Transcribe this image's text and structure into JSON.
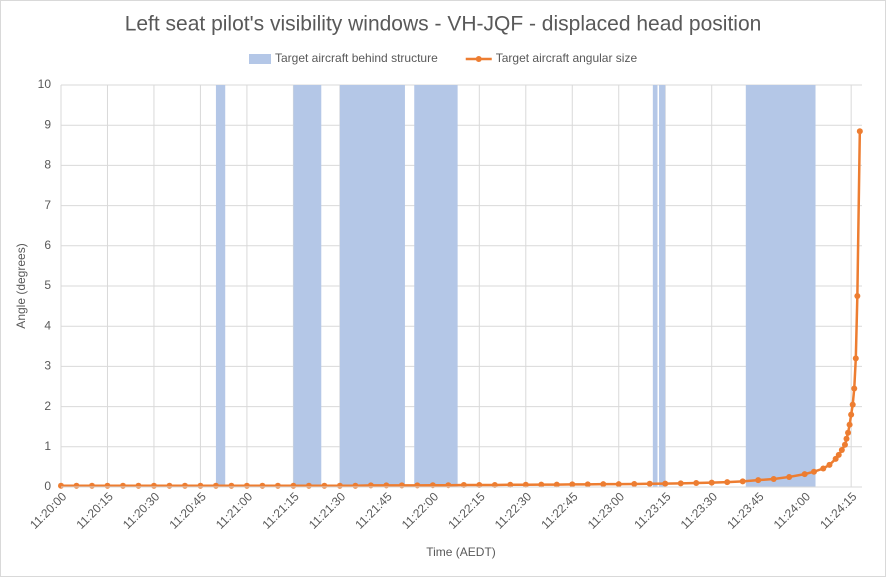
{
  "chart_data": {
    "type": "combo",
    "title": "Left seat pilot's visibility windows - VH-JQF - displaced head position",
    "x_label": "Time (AEDT)",
    "y_label": "Angle (degrees)",
    "xlim": [
      0,
      258.5
    ],
    "ylim": [
      0,
      10
    ],
    "xticks": [
      {
        "value": 0,
        "label": "11:20:00"
      },
      {
        "value": 15,
        "label": "11:20:15"
      },
      {
        "value": 30,
        "label": "11:20:30"
      },
      {
        "value": 45,
        "label": "11:20:45"
      },
      {
        "value": 60,
        "label": "11:21:00"
      },
      {
        "value": 75,
        "label": "11:21:15"
      },
      {
        "value": 90,
        "label": "11:21:30"
      },
      {
        "value": 105,
        "label": "11:21:45"
      },
      {
        "value": 120,
        "label": "11:22:00"
      },
      {
        "value": 135,
        "label": "11:22:15"
      },
      {
        "value": 150,
        "label": "11:22:30"
      },
      {
        "value": 165,
        "label": "11:22:45"
      },
      {
        "value": 180,
        "label": "11:23:00"
      },
      {
        "value": 195,
        "label": "11:23:15"
      },
      {
        "value": 210,
        "label": "11:23:30"
      },
      {
        "value": 225,
        "label": "11:23:45"
      },
      {
        "value": 240,
        "label": "11:24:00"
      },
      {
        "value": 255,
        "label": "11:24:15"
      }
    ],
    "yticks": [
      0,
      1,
      2,
      3,
      4,
      5,
      6,
      7,
      8,
      9,
      10
    ],
    "grid": true,
    "legend": "top",
    "series": [
      {
        "name": "Target aircraft behind structure",
        "type": "band",
        "color": "#b4c7e7",
        "x_start": [
          50,
          75,
          90,
          114,
          191,
          193,
          221
        ],
        "x_end": [
          53,
          84,
          111,
          128,
          192.5,
          195,
          243.5
        ],
        "values": [
          10,
          10,
          10,
          10,
          10,
          10,
          10
        ]
      },
      {
        "name": "Target aircraft angular size",
        "type": "line",
        "color": "#ed7d31",
        "x": [
          0,
          5,
          10,
          15,
          20,
          25,
          30,
          35,
          40,
          45,
          50,
          55,
          60,
          65,
          70,
          75,
          80,
          85,
          90,
          95,
          100,
          105,
          110,
          115,
          120,
          125,
          130,
          135,
          140,
          145,
          150,
          155,
          160,
          165,
          170,
          175,
          180,
          185,
          190,
          195,
          200,
          205,
          210,
          215,
          220,
          225,
          230,
          235,
          240,
          243,
          246,
          248,
          250,
          251,
          252,
          253,
          253.5,
          254,
          254.5,
          255,
          255.5,
          256,
          256.5,
          257,
          257.8
        ],
        "values": [
          0.03,
          0.03,
          0.03,
          0.03,
          0.03,
          0.03,
          0.03,
          0.03,
          0.03,
          0.03,
          0.03,
          0.03,
          0.03,
          0.03,
          0.03,
          0.03,
          0.03,
          0.03,
          0.03,
          0.03,
          0.04,
          0.04,
          0.04,
          0.04,
          0.045,
          0.045,
          0.05,
          0.05,
          0.05,
          0.055,
          0.055,
          0.06,
          0.06,
          0.065,
          0.065,
          0.07,
          0.07,
          0.075,
          0.08,
          0.085,
          0.09,
          0.1,
          0.11,
          0.12,
          0.14,
          0.17,
          0.2,
          0.25,
          0.32,
          0.38,
          0.46,
          0.55,
          0.7,
          0.8,
          0.92,
          1.05,
          1.2,
          1.35,
          1.55,
          1.8,
          2.05,
          2.45,
          3.2,
          4.75,
          8.85
        ]
      }
    ]
  }
}
